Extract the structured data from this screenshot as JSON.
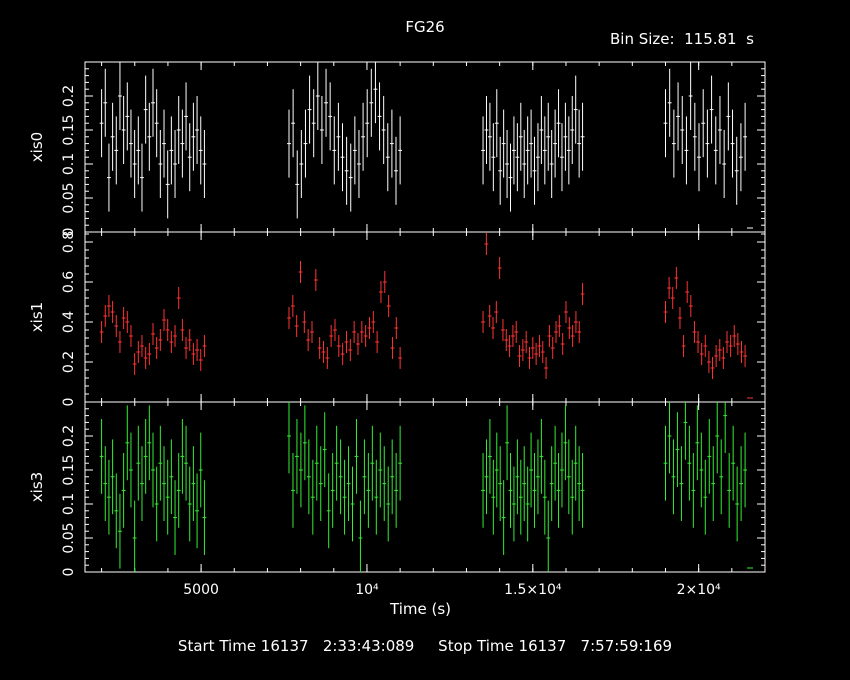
{
  "title": "FG26",
  "bin_size_label": "Bin Size:  115.81  s",
  "x_axis_label": "Time (s)",
  "footer": "Start Time 16137   2:33:43:089     Stop Time 16137   7:57:59:169",
  "chart_data": {
    "type": "scatter",
    "xlabel": "Time (s)",
    "xlim": [
      1500,
      22000
    ],
    "xticks": [
      {
        "value": 5000,
        "label": "5000"
      },
      {
        "value": 10000,
        "label": "10⁴"
      },
      {
        "value": 15000,
        "label": "1.5×10⁴"
      },
      {
        "value": 20000,
        "label": "2×10⁴"
      }
    ],
    "xerr": 57.9,
    "segments": [
      [
        2000,
        5100
      ],
      [
        7650,
        11000
      ],
      [
        13500,
        16500
      ],
      [
        19000,
        21400
      ]
    ],
    "panels": [
      {
        "name": "xis0",
        "color": "#ffffff",
        "ylim": [
          0,
          0.25
        ],
        "yticks": [
          0,
          0.05,
          0.1,
          0.15,
          0.2
        ],
        "ytick_labels": [
          "0",
          "0.05",
          "0.1",
          "0.15",
          "0.2"
        ],
        "yerr": 0.05,
        "segment_values": [
          [
            0.16,
            0.19,
            0.08,
            0.14,
            0.12,
            0.2,
            0.15,
            0.17,
            0.13,
            0.1,
            0.12,
            0.08,
            0.18,
            0.14,
            0.19,
            0.16,
            0.1,
            0.13,
            0.07,
            0.12,
            0.1,
            0.15,
            0.13,
            0.17,
            0.11,
            0.14,
            0.15,
            0.12,
            0.1
          ],
          [
            0.13,
            0.16,
            0.07,
            0.1,
            0.13,
            0.18,
            0.16,
            0.2,
            0.15,
            0.19,
            0.17,
            0.12,
            0.14,
            0.11,
            0.09,
            0.08,
            0.12,
            0.1,
            0.14,
            0.16,
            0.19,
            0.21,
            0.17,
            0.15,
            0.11,
            0.13,
            0.09,
            0.12
          ],
          [
            0.12,
            0.15,
            0.14,
            0.11,
            0.16,
            0.09,
            0.13,
            0.1,
            0.08,
            0.12,
            0.11,
            0.14,
            0.1,
            0.12,
            0.13,
            0.09,
            0.11,
            0.15,
            0.12,
            0.14,
            0.1,
            0.13,
            0.16,
            0.11,
            0.14,
            0.12,
            0.15,
            0.18,
            0.13,
            0.14
          ],
          [
            0.16,
            0.19,
            0.13,
            0.17,
            0.15,
            0.12,
            0.2,
            0.14,
            0.11,
            0.16,
            0.13,
            0.18,
            0.12,
            0.15,
            0.1,
            0.17,
            0.13,
            0.09,
            0.11,
            0.14
          ]
        ]
      },
      {
        "name": "xis1",
        "color": "#ff3333",
        "ylim": [
          0,
          0.85
        ],
        "yticks": [
          0,
          0.2,
          0.4,
          0.6,
          0.8
        ],
        "ytick_labels": [
          "0",
          "0.2",
          "0.4",
          "0.6",
          "0.8"
        ],
        "yerr": 0.055,
        "segment_values": [
          [
            0.35,
            0.43,
            0.48,
            0.45,
            0.38,
            0.3,
            0.42,
            0.4,
            0.33,
            0.19,
            0.25,
            0.28,
            0.22,
            0.24,
            0.34,
            0.27,
            0.31,
            0.41,
            0.36,
            0.3,
            0.33,
            0.52,
            0.36,
            0.27,
            0.31,
            0.24,
            0.26,
            0.21,
            0.28
          ],
          [
            0.42,
            0.48,
            0.38,
            0.65,
            0.4,
            0.31,
            0.35,
            0.61,
            0.27,
            0.25,
            0.22,
            0.33,
            0.36,
            0.28,
            0.24,
            0.3,
            0.26,
            0.35,
            0.29,
            0.35,
            0.33,
            0.37,
            0.4,
            0.3,
            0.55,
            0.6,
            0.48,
            0.27,
            0.37,
            0.22
          ],
          [
            0.4,
            0.79,
            0.43,
            0.37,
            0.45,
            0.67,
            0.36,
            0.31,
            0.28,
            0.33,
            0.35,
            0.23,
            0.26,
            0.3,
            0.22,
            0.27,
            0.24,
            0.28,
            0.25,
            0.17,
            0.33,
            0.27,
            0.35,
            0.38,
            0.29,
            0.45,
            0.37,
            0.33,
            0.4,
            0.35,
            0.54
          ],
          [
            0.45,
            0.57,
            0.52,
            0.62,
            0.42,
            0.28,
            0.55,
            0.48,
            0.35,
            0.3,
            0.24,
            0.28,
            0.2,
            0.17,
            0.23,
            0.26,
            0.22,
            0.3,
            0.28,
            0.33,
            0.29,
            0.25,
            0.23
          ]
        ]
      },
      {
        "name": "xis3",
        "color": "#33ee33",
        "ylim": [
          0,
          0.25
        ],
        "yticks": [
          0,
          0.05,
          0.1,
          0.15,
          0.2
        ],
        "ytick_labels": [
          "0",
          "0.05",
          "0.1",
          "0.15",
          "0.2"
        ],
        "yerr": 0.055,
        "segment_values": [
          [
            0.17,
            0.13,
            0.11,
            0.14,
            0.09,
            0.06,
            0.12,
            0.19,
            0.15,
            0.05,
            0.16,
            0.13,
            0.17,
            0.19,
            0.15,
            0.1,
            0.16,
            0.13,
            0.11,
            0.14,
            0.08,
            0.12,
            0.17,
            0.16,
            0.1,
            0.13,
            0.09,
            0.15,
            0.08
          ],
          [
            0.2,
            0.12,
            0.17,
            0.15,
            0.19,
            0.14,
            0.11,
            0.16,
            0.13,
            0.18,
            0.09,
            0.12,
            0.16,
            0.14,
            0.11,
            0.13,
            0.1,
            0.17,
            0.05,
            0.14,
            0.12,
            0.16,
            0.11,
            0.15,
            0.13,
            0.1,
            0.14,
            0.12,
            0.16
          ],
          [
            0.12,
            0.14,
            0.17,
            0.11,
            0.15,
            0.13,
            0.08,
            0.19,
            0.12,
            0.1,
            0.14,
            0.11,
            0.13,
            0.1,
            0.15,
            0.12,
            0.14,
            0.17,
            0.11,
            0.05,
            0.13,
            0.16,
            0.12,
            0.15,
            0.19,
            0.14,
            0.11,
            0.16,
            0.13,
            0.12
          ],
          [
            0.16,
            0.2,
            0.14,
            0.18,
            0.13,
            0.22,
            0.16,
            0.12,
            0.19,
            0.15,
            0.11,
            0.17,
            0.13,
            0.2,
            0.14,
            0.23,
            0.12,
            0.16,
            0.1,
            0.13,
            0.15
          ]
        ]
      }
    ]
  }
}
